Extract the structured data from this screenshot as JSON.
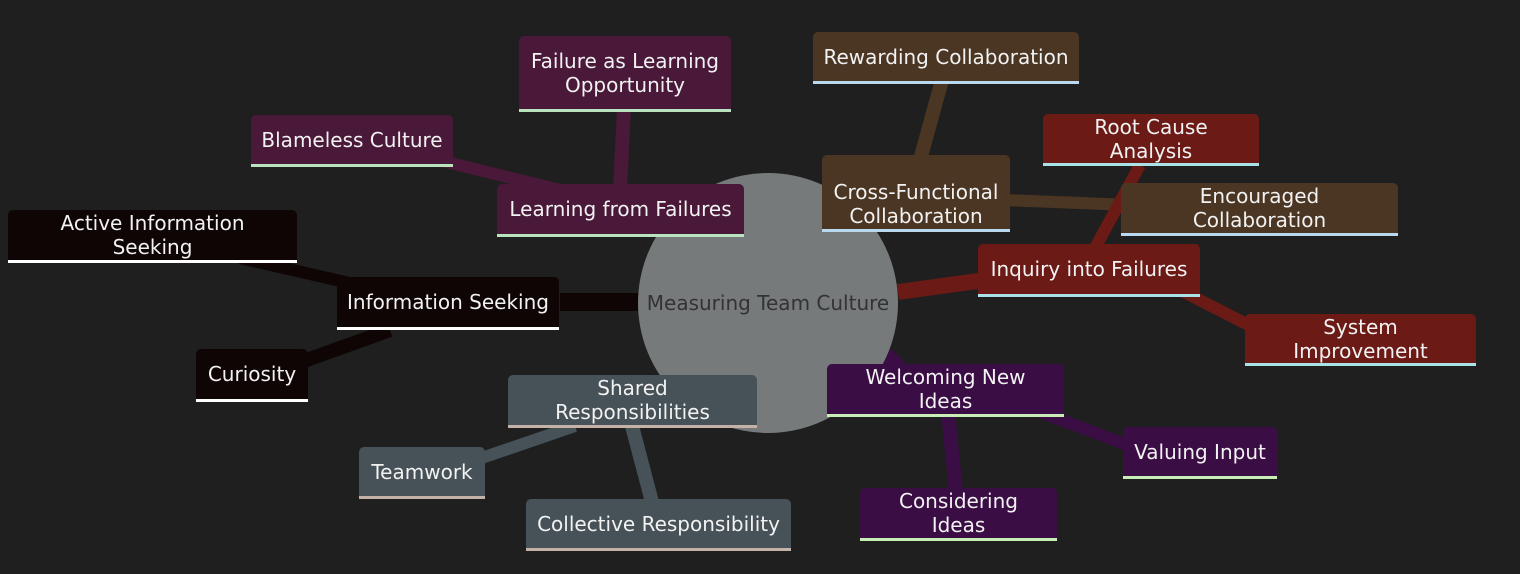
{
  "root": {
    "label": "Measuring Team Culture"
  },
  "branches": {
    "learning": {
      "color": "#4a1838",
      "border": "#b9e3bf",
      "label": "Learning from Failures",
      "children": [
        "Failure as Learning Opportunity",
        "Blameless Culture"
      ]
    },
    "collab": {
      "color": "#4b3623",
      "border": "#b8d9ef",
      "label": "Cross-Functional Collaboration",
      "children": [
        "Rewarding Collaboration",
        "Encouraged Collaboration"
      ]
    },
    "inquiry": {
      "color": "#6b1a15",
      "border": "#a9e3e8",
      "label": "Inquiry into Failures",
      "children": [
        "Root Cause Analysis",
        "System Improvement"
      ]
    },
    "ideas": {
      "color": "#3b0d45",
      "border": "#c6eeb6",
      "label": "Welcoming New Ideas",
      "children": [
        "Valuing Input",
        "Considering Ideas"
      ]
    },
    "shared": {
      "color": "#465257",
      "border": "#c4b2a6",
      "label": "Shared Responsibilities",
      "children": [
        "Teamwork",
        "Collective Responsibility"
      ]
    },
    "info": {
      "color": "#0f0505",
      "border": "#ffffff",
      "label": "Information Seeking",
      "children": [
        "Active Information Seeking",
        "Curiosity"
      ]
    }
  }
}
